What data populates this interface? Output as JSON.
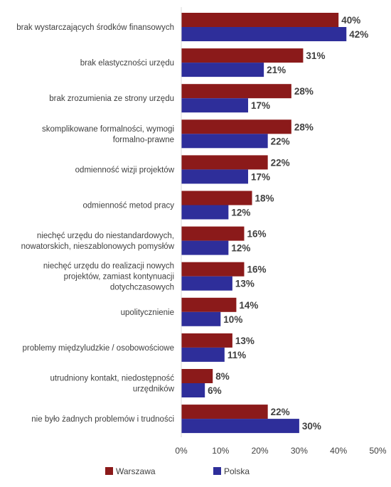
{
  "chart_data": {
    "type": "bar",
    "orientation": "horizontal",
    "categories": [
      [
        "brak wystarczających środków finansowych"
      ],
      [
        "brak elastyczności urzędu"
      ],
      [
        "brak zrozumienia ze strony urzędu"
      ],
      [
        "skomplikowane formalności, wymogi",
        "formalno-prawne"
      ],
      [
        "odmienność wizji projektów"
      ],
      [
        "odmienność metod pracy"
      ],
      [
        "niechęć urzędu do niestandardowych,",
        "nowatorskich, nieszablonowych pomysłów"
      ],
      [
        "niechęć urzędu do realizacji nowych",
        "projektów, zamiast kontynuacji",
        "dotychczasowych"
      ],
      [
        "upolitycznienie"
      ],
      [
        "problemy międzyludzkie / osobowościowe"
      ],
      [
        "utrudniony kontakt, niedostępność",
        "urzędników"
      ],
      [
        "nie było żadnych problemów i trudności"
      ]
    ],
    "series": [
      {
        "name": "Warszawa",
        "color": "#8B1A1A",
        "values": [
          40,
          31,
          28,
          28,
          22,
          18,
          16,
          16,
          14,
          13,
          8,
          22
        ]
      },
      {
        "name": "Polska",
        "color": "#2E2E9A",
        "values": [
          42,
          21,
          17,
          22,
          17,
          12,
          12,
          13,
          10,
          11,
          6,
          30
        ]
      }
    ],
    "xlim": [
      0,
      50
    ],
    "ticks": [
      "0%",
      "10%",
      "20%",
      "30%",
      "40%",
      "50%"
    ],
    "value_suffix": "%",
    "legend_position": "bottom",
    "grid": false
  }
}
